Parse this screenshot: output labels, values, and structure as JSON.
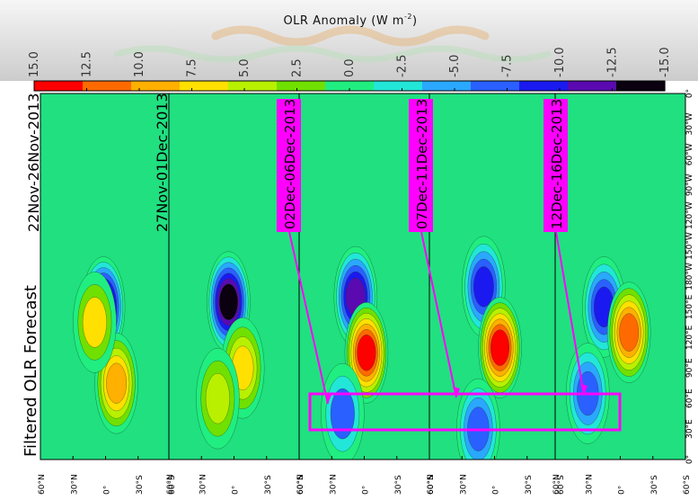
{
  "chart_data": {
    "type": "heatmap",
    "colorbar": {
      "title_main": "OLR Anomaly (W m",
      "title_exp": "-2",
      "title_close": ")",
      "ticks": [
        "15.0",
        "12.5",
        "10.0",
        "7.5",
        "5.0",
        "2.5",
        "0.0",
        "-2.5",
        "-5.0",
        "-7.5",
        "-10.0",
        "-12.5",
        "-15.0"
      ],
      "range": [
        15.0,
        -15.0
      ],
      "colors": [
        "#ff0000",
        "#ff6a00",
        "#ffb000",
        "#ffe000",
        "#b8f000",
        "#70e000",
        "#20ee80",
        "#22e6d8",
        "#2aa8ff",
        "#2a60ff",
        "#1a1af0",
        "#5a0ab0",
        "#0a0010"
      ]
    },
    "side_title": "Filtered OLR  Forecast",
    "panels": [
      {
        "date": "22Nov-26Nov-2013",
        "highlight": false,
        "blobs": [
          {
            "lat": 2,
            "lon": 150,
            "value": -14
          },
          {
            "lat": -10,
            "lon": 75,
            "value": 10
          },
          {
            "lat": 10,
            "lon": 135,
            "value": 6
          }
        ]
      },
      {
        "date": "27Nov-01Dec-2013",
        "highlight": false,
        "blobs": [
          {
            "lat": 5,
            "lon": 155,
            "value": -14
          },
          {
            "lat": -8,
            "lon": 90,
            "value": 8
          },
          {
            "lat": 15,
            "lon": 60,
            "value": 5
          }
        ]
      },
      {
        "date": "02Dec-06Dec-2013",
        "highlight": true,
        "blobs": [
          {
            "lat": 8,
            "lon": 160,
            "value": -12
          },
          {
            "lat": -2,
            "lon": 105,
            "value": 14
          },
          {
            "lat": 20,
            "lon": 45,
            "value": -6
          }
        ]
      },
      {
        "date": "07Dec-11Dec-2013",
        "highlight": true,
        "blobs": [
          {
            "lat": 10,
            "lon": 170,
            "value": -10
          },
          {
            "lat": -5,
            "lon": 110,
            "value": 14
          },
          {
            "lat": 15,
            "lon": 30,
            "value": -8
          }
        ]
      },
      {
        "date": "12Dec-16Dec-2013",
        "highlight": true,
        "blobs": [
          {
            "lat": 15,
            "lon": 150,
            "value": -9
          },
          {
            "lat": -8,
            "lon": 125,
            "value": 12
          },
          {
            "lat": 30,
            "lon": 65,
            "value": -7
          }
        ]
      }
    ],
    "lat_ticks": [
      "60°N",
      "30°N",
      "0°",
      "30°S",
      "60°S"
    ],
    "lon_ticks": [
      "0°",
      "30°E",
      "60°E",
      "90°E",
      "120°E",
      "150°E",
      "180°W",
      "150°W",
      "120°W",
      "90°W",
      "60°W",
      "30°W",
      "0°"
    ],
    "highlight_box": {
      "color": "#ff00ff"
    }
  }
}
